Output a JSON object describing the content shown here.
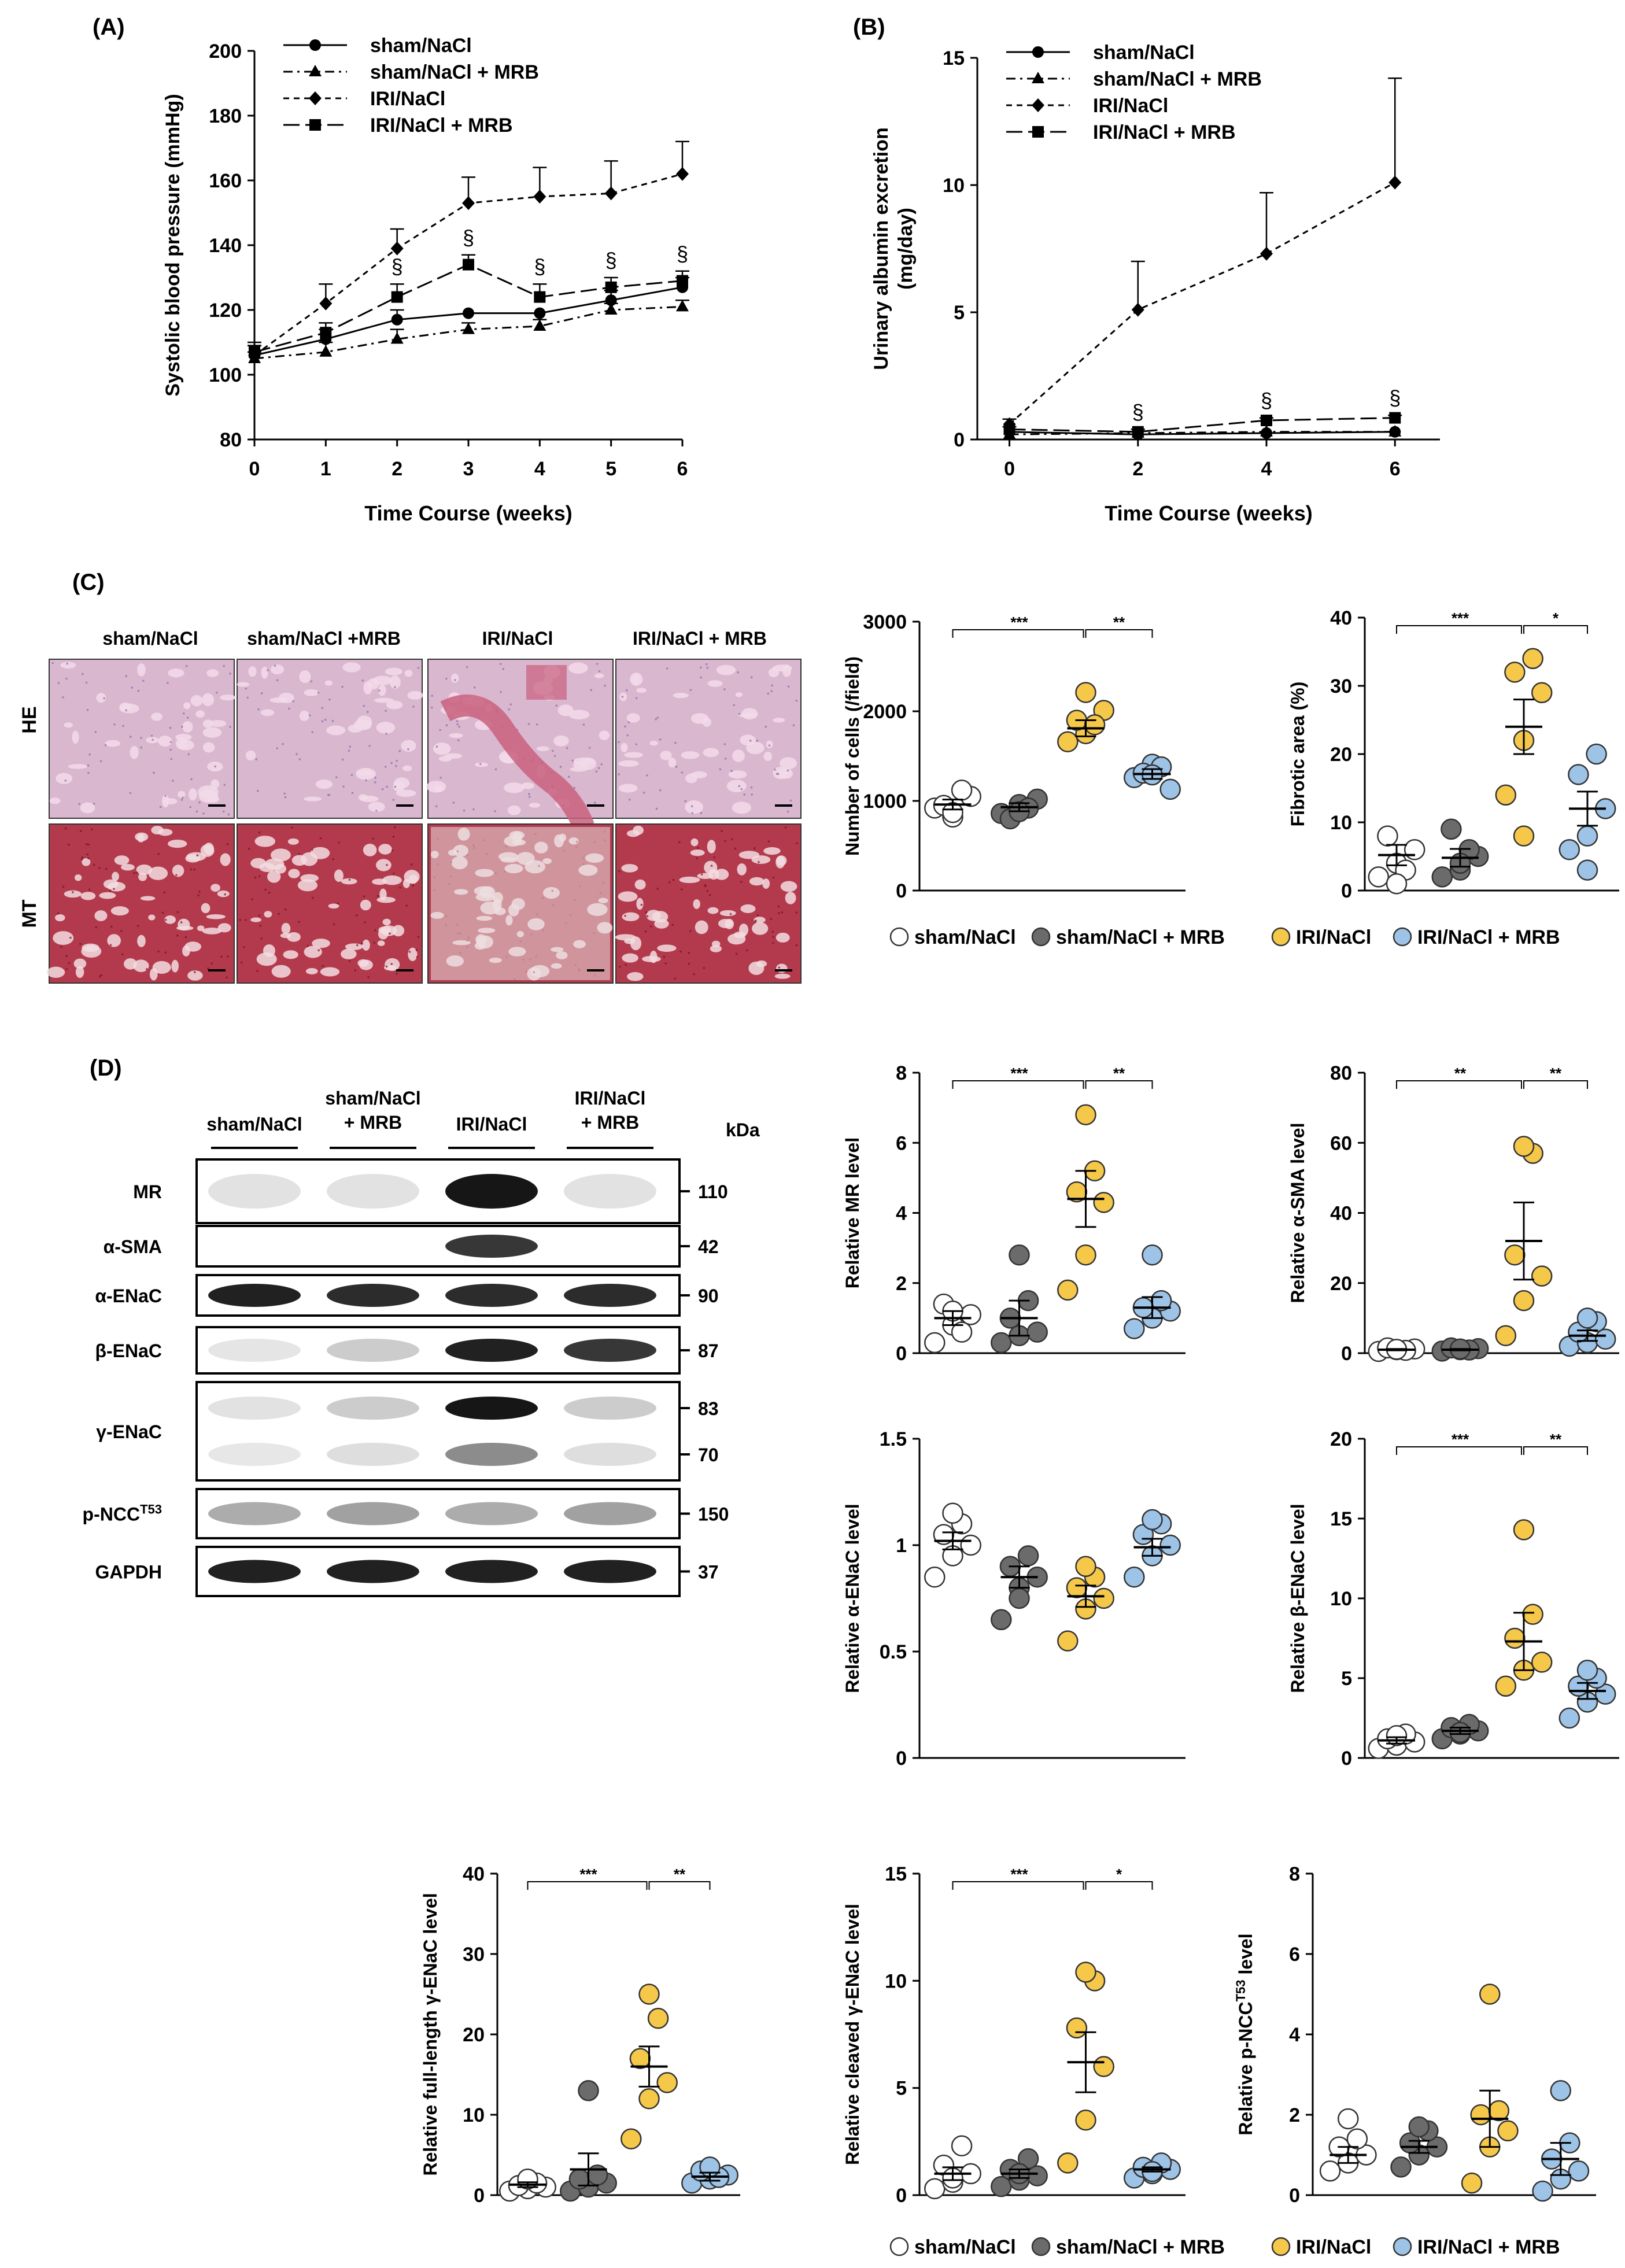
{
  "panel_labels": {
    "a": "(A)",
    "b": "(B)",
    "c": "(C)",
    "d": "(D)"
  },
  "colors": {
    "sham": "#ffffff",
    "sham_mrb": "#6b6b6b",
    "iri": "#f5c84a",
    "iri_mrb": "#9dc3e6",
    "he_bg": "#d9b7cf",
    "mt_bg": "#b23a4c"
  },
  "groups": [
    "sham/NaCl",
    "sham/NaCl + MRB",
    "IRI/NaCl",
    "IRI/NaCl + MRB"
  ],
  "dot_legend": [
    "sham/NaCl",
    "sham/NaCl + MRB",
    "IRI/NaCl",
    "IRI/NaCl + MRB"
  ],
  "histology": {
    "col_labels": [
      "sham/NaCl",
      "sham/NaCl +MRB",
      "IRI/NaCl",
      "IRI/NaCl + MRB"
    ],
    "row_labels": [
      "HE",
      "MT"
    ]
  },
  "western": {
    "group_labels": [
      "sham/NaCl",
      "sham/NaCl\n+ MRB",
      "IRI/NaCl",
      "IRI/NaCl\n+ MRB"
    ],
    "kda_label": "kDa",
    "rows": [
      {
        "name": "MR",
        "kda": [
          "110"
        ],
        "intensity": [
          0.05,
          0.05,
          1.0,
          0.05
        ]
      },
      {
        "name": "α-SMA",
        "kda": [
          "42"
        ],
        "intensity": [
          0,
          0,
          0.85,
          0
        ]
      },
      {
        "name": "α-ENaC",
        "kda": [
          "90"
        ],
        "intensity": [
          0.95,
          0.9,
          0.9,
          0.9
        ]
      },
      {
        "name": "β-ENaC",
        "kda": [
          "87"
        ],
        "intensity": [
          0.03,
          0.15,
          0.95,
          0.85
        ]
      },
      {
        "name": "γ-ENaC",
        "kda": [
          "83",
          "70"
        ],
        "intensity": [
          0.05,
          0.15,
          1.0,
          0.15
        ]
      },
      {
        "name": "p-NCC",
        "sup": "T53",
        "kda": [
          "150"
        ],
        "intensity": [
          0.3,
          0.35,
          0.3,
          0.35
        ]
      },
      {
        "name": "GAPDH",
        "kda": [
          "37"
        ],
        "intensity": [
          0.95,
          0.95,
          0.95,
          0.95
        ]
      }
    ]
  },
  "chart_data": [
    {
      "id": "A",
      "type": "line",
      "xlabel": "Time Course (weeks)",
      "ylabel": "Systolic blood pressure (mmHg)",
      "x": [
        0,
        1,
        2,
        3,
        4,
        5,
        6
      ],
      "xlim": [
        0,
        6
      ],
      "ylim": [
        80,
        200
      ],
      "yticks": [
        80,
        100,
        120,
        140,
        160,
        180,
        200
      ],
      "legend_position": "top-left",
      "series": [
        {
          "name": "sham/NaCl",
          "marker": "circle",
          "dash": "solid",
          "values": [
            106,
            111,
            117,
            119,
            119,
            123,
            127
          ],
          "err": [
            3,
            3,
            3,
            0,
            0,
            3,
            3
          ]
        },
        {
          "name": "sham/NaCl + MRB",
          "marker": "triangle",
          "dash": "dashdot",
          "values": [
            105,
            107,
            111,
            114,
            115,
            120,
            121
          ],
          "err": [
            2,
            3,
            3,
            2,
            2,
            2,
            2
          ]
        },
        {
          "name": "IRI/NaCl",
          "marker": "diamond",
          "dash": "dashed",
          "values": [
            106,
            122,
            139,
            153,
            155,
            156,
            162
          ],
          "err": [
            3,
            6,
            6,
            8,
            9,
            10,
            10
          ]
        },
        {
          "name": "IRI/NaCl + MRB",
          "marker": "square",
          "dash": "longdash",
          "values": [
            107,
            113,
            124,
            134,
            124,
            127,
            129
          ],
          "err": [
            3,
            3,
            4,
            3,
            4,
            3,
            3
          ]
        }
      ],
      "annotations": [
        {
          "x": 2,
          "text": "§"
        },
        {
          "x": 3,
          "text": "§"
        },
        {
          "x": 4,
          "text": "§"
        },
        {
          "x": 5,
          "text": "§"
        },
        {
          "x": 6,
          "text": "§"
        }
      ]
    },
    {
      "id": "B",
      "type": "line",
      "xlabel": "Time Course (weeks)",
      "ylabel": "Urinary albumin excretion (mg/day)",
      "x": [
        0,
        2,
        4,
        6
      ],
      "xlim": [
        -0.5,
        6.7
      ],
      "ylim": [
        0,
        15
      ],
      "yticks": [
        0,
        5,
        10,
        15
      ],
      "legend_position": "top-left",
      "series": [
        {
          "name": "sham/NaCl",
          "marker": "circle",
          "dash": "solid",
          "values": [
            0.3,
            0.2,
            0.25,
            0.3
          ],
          "err": [
            0,
            0,
            0,
            0
          ]
        },
        {
          "name": "sham/NaCl + MRB",
          "marker": "triangle",
          "dash": "dashdot",
          "values": [
            0.2,
            0.25,
            0.3,
            0.3
          ],
          "err": [
            0,
            0,
            0,
            0
          ]
        },
        {
          "name": "IRI/NaCl",
          "marker": "diamond",
          "dash": "dashed",
          "values": [
            0.6,
            5.1,
            7.3,
            10.1
          ],
          "err": [
            0.2,
            1.9,
            2.4,
            4.1
          ]
        },
        {
          "name": "IRI/NaCl + MRB",
          "marker": "square",
          "dash": "longdash",
          "values": [
            0.4,
            0.3,
            0.75,
            0.85
          ],
          "err": [
            0.1,
            0.1,
            0.1,
            0.1
          ]
        }
      ],
      "annotations": [
        {
          "x": 2,
          "text": "§"
        },
        {
          "x": 4,
          "text": "§"
        },
        {
          "x": 6,
          "text": "§"
        }
      ]
    },
    {
      "id": "cells",
      "type": "scatter",
      "ylabel": "Number of cells (/field)",
      "ylim": [
        0,
        3000
      ],
      "yticks": [
        0,
        1000,
        2000,
        3000
      ],
      "points": [
        [
          920,
          820,
          1050,
          950,
          1120,
          870
        ],
        [
          860,
          960,
          1020,
          800,
          920,
          880
        ],
        [
          1660,
          1750,
          2010,
          1900,
          1850,
          2210
        ],
        [
          1260,
          1410,
          1130,
          1310,
          1380,
          1290
        ]
      ],
      "mean": [
        960,
        930,
        1810,
        1300
      ],
      "sem": [
        55,
        45,
        90,
        55
      ],
      "sig": [
        {
          "from": 0,
          "to": 2,
          "label": "***"
        },
        {
          "from": 2,
          "to": 3,
          "label": "**"
        }
      ]
    },
    {
      "id": "fibrotic",
      "type": "scatter",
      "ylabel": "Fibrotic area (%)",
      "ylim": [
        0,
        40
      ],
      "yticks": [
        0,
        10,
        20,
        30,
        40
      ],
      "points": [
        [
          2,
          4,
          6,
          8,
          3,
          1
        ],
        [
          2,
          3,
          5,
          9,
          6,
          4
        ],
        [
          14,
          22,
          29,
          32,
          34,
          8
        ],
        [
          6,
          8,
          12,
          17,
          20,
          3
        ]
      ],
      "mean": [
        5.2,
        4.8,
        24,
        12
      ],
      "sem": [
        1.5,
        1.3,
        4,
        2.5
      ],
      "sig": [
        {
          "from": 0,
          "to": 2,
          "label": "***"
        },
        {
          "from": 2,
          "to": 3,
          "label": "*"
        }
      ]
    },
    {
      "id": "mr",
      "type": "scatter",
      "ylabel": "Relative MR level",
      "ylim": [
        0,
        8
      ],
      "yticks": [
        0,
        2,
        4,
        6,
        8
      ],
      "points": [
        [
          0.3,
          0.8,
          1.1,
          1.4,
          0.6,
          1.2
        ],
        [
          0.3,
          0.5,
          0.6,
          1.0,
          1.5,
          2.8
        ],
        [
          1.8,
          2.8,
          4.3,
          4.6,
          5.2,
          6.8
        ],
        [
          0.7,
          1.0,
          1.2,
          1.3,
          1.5,
          2.8
        ]
      ],
      "mean": [
        1.0,
        1.0,
        4.4,
        1.3
      ],
      "sem": [
        0.2,
        0.5,
        0.8,
        0.3
      ],
      "sig": [
        {
          "from": 0,
          "to": 2,
          "label": "***"
        },
        {
          "from": 2,
          "to": 3,
          "label": "**"
        }
      ]
    },
    {
      "id": "asma",
      "type": "scatter",
      "ylabel": "Relative α-SMA level",
      "ylim": [
        0,
        80
      ],
      "yticks": [
        0,
        20,
        40,
        60,
        80
      ],
      "points": [
        [
          0.5,
          1,
          1.2,
          1.5,
          0.8,
          1.1
        ],
        [
          0.6,
          1,
          1.3,
          1.5,
          0.9,
          1.2
        ],
        [
          5,
          15,
          22,
          28,
          57,
          59
        ],
        [
          2,
          3,
          4,
          6,
          9,
          10
        ]
      ],
      "mean": [
        1,
        1,
        32,
        5
      ],
      "sem": [
        0.2,
        0.2,
        11,
        1.5
      ],
      "sig": [
        {
          "from": 0,
          "to": 2,
          "label": "**"
        },
        {
          "from": 2,
          "to": 3,
          "label": "**"
        }
      ]
    },
    {
      "id": "aenac",
      "type": "scatter",
      "ylabel": "Relative α-ENaC level",
      "ylim": [
        0,
        1.5
      ],
      "yticks": [
        0,
        0.5,
        1,
        1.5
      ],
      "points": [
        [
          0.85,
          0.95,
          1.0,
          1.05,
          1.1,
          1.15
        ],
        [
          0.65,
          0.8,
          0.85,
          0.9,
          0.95,
          0.75
        ],
        [
          0.55,
          0.7,
          0.75,
          0.8,
          0.85,
          0.9
        ],
        [
          0.85,
          0.95,
          1.0,
          1.05,
          1.1,
          1.12
        ]
      ],
      "mean": [
        1.02,
        0.85,
        0.76,
        0.99
      ],
      "sem": [
        0.04,
        0.05,
        0.05,
        0.04
      ],
      "sig": []
    },
    {
      "id": "benac",
      "type": "scatter",
      "ylabel": "Relative β-ENaC level",
      "ylim": [
        0,
        20
      ],
      "yticks": [
        0,
        5,
        10,
        15,
        20
      ],
      "points": [
        [
          0.6,
          0.8,
          1,
          1.2,
          1.5,
          1.4
        ],
        [
          1.2,
          1.5,
          1.7,
          1.9,
          2.1,
          1.6
        ],
        [
          4.5,
          5.5,
          6,
          7.5,
          9,
          14.3
        ],
        [
          2.5,
          3.5,
          4,
          4.5,
          5,
          5.5
        ]
      ],
      "mean": [
        1.1,
        1.7,
        7.3,
        4.2
      ],
      "sem": [
        0.2,
        0.2,
        1.8,
        0.5
      ],
      "sig": [
        {
          "from": 0,
          "to": 2,
          "label": "***"
        },
        {
          "from": 2,
          "to": 3,
          "label": "**"
        }
      ]
    },
    {
      "id": "flgenac",
      "type": "scatter",
      "ylabel": "Relative full-length γ-ENaC level",
      "ylim": [
        0,
        40
      ],
      "yticks": [
        0,
        10,
        20,
        30,
        40
      ],
      "points": [
        [
          0.5,
          0.8,
          1,
          1.2,
          1.5,
          2
        ],
        [
          0.5,
          1,
          1.5,
          2,
          2.5,
          13
        ],
        [
          7,
          12,
          14,
          17,
          22,
          25
        ],
        [
          1.5,
          2,
          2.5,
          3,
          2.2,
          3.5
        ]
      ],
      "mean": [
        1.3,
        3.2,
        16,
        2.3
      ],
      "sem": [
        0.3,
        2,
        2.5,
        0.5
      ],
      "sig": [
        {
          "from": 0,
          "to": 2,
          "label": "***"
        },
        {
          "from": 2,
          "to": 3,
          "label": "**"
        }
      ]
    },
    {
      "id": "clgenac",
      "type": "scatter",
      "ylabel": "Relative cleaved γ-ENaC level",
      "ylim": [
        0,
        15
      ],
      "yticks": [
        0,
        5,
        10,
        15
      ],
      "points": [
        [
          0.3,
          0.6,
          1,
          1.4,
          2.3,
          0.8
        ],
        [
          0.4,
          0.7,
          0.9,
          1.2,
          1.7,
          1.0
        ],
        [
          1.5,
          3.5,
          6,
          7.8,
          10,
          10.4
        ],
        [
          0.8,
          1,
          1.2,
          1.3,
          1.5,
          1.1
        ]
      ],
      "mean": [
        1.0,
        1.0,
        6.2,
        1.2
      ],
      "sem": [
        0.3,
        0.2,
        1.4,
        0.1
      ],
      "sig": [
        {
          "from": 0,
          "to": 2,
          "label": "***"
        },
        {
          "from": 2,
          "to": 3,
          "label": "*"
        }
      ]
    },
    {
      "id": "pncc",
      "type": "scatter",
      "ylabel": "Relative p-NCC",
      "ylabel_sup": "T53",
      "ylabel_tail": " level",
      "ylim": [
        0,
        8
      ],
      "yticks": [
        0,
        2,
        4,
        6,
        8
      ],
      "points": [
        [
          0.6,
          0.8,
          1,
          1.2,
          1.4,
          1.9
        ],
        [
          0.7,
          1,
          1.2,
          1.3,
          1.6,
          1.7
        ],
        [
          0.3,
          1.2,
          1.6,
          2,
          2.1,
          5
        ],
        [
          0.1,
          0.4,
          0.6,
          0.9,
          1.3,
          2.6
        ]
      ],
      "mean": [
        1.0,
        1.2,
        1.9,
        0.9
      ],
      "sem": [
        0.2,
        0.15,
        0.7,
        0.4
      ],
      "sig": []
    }
  ]
}
